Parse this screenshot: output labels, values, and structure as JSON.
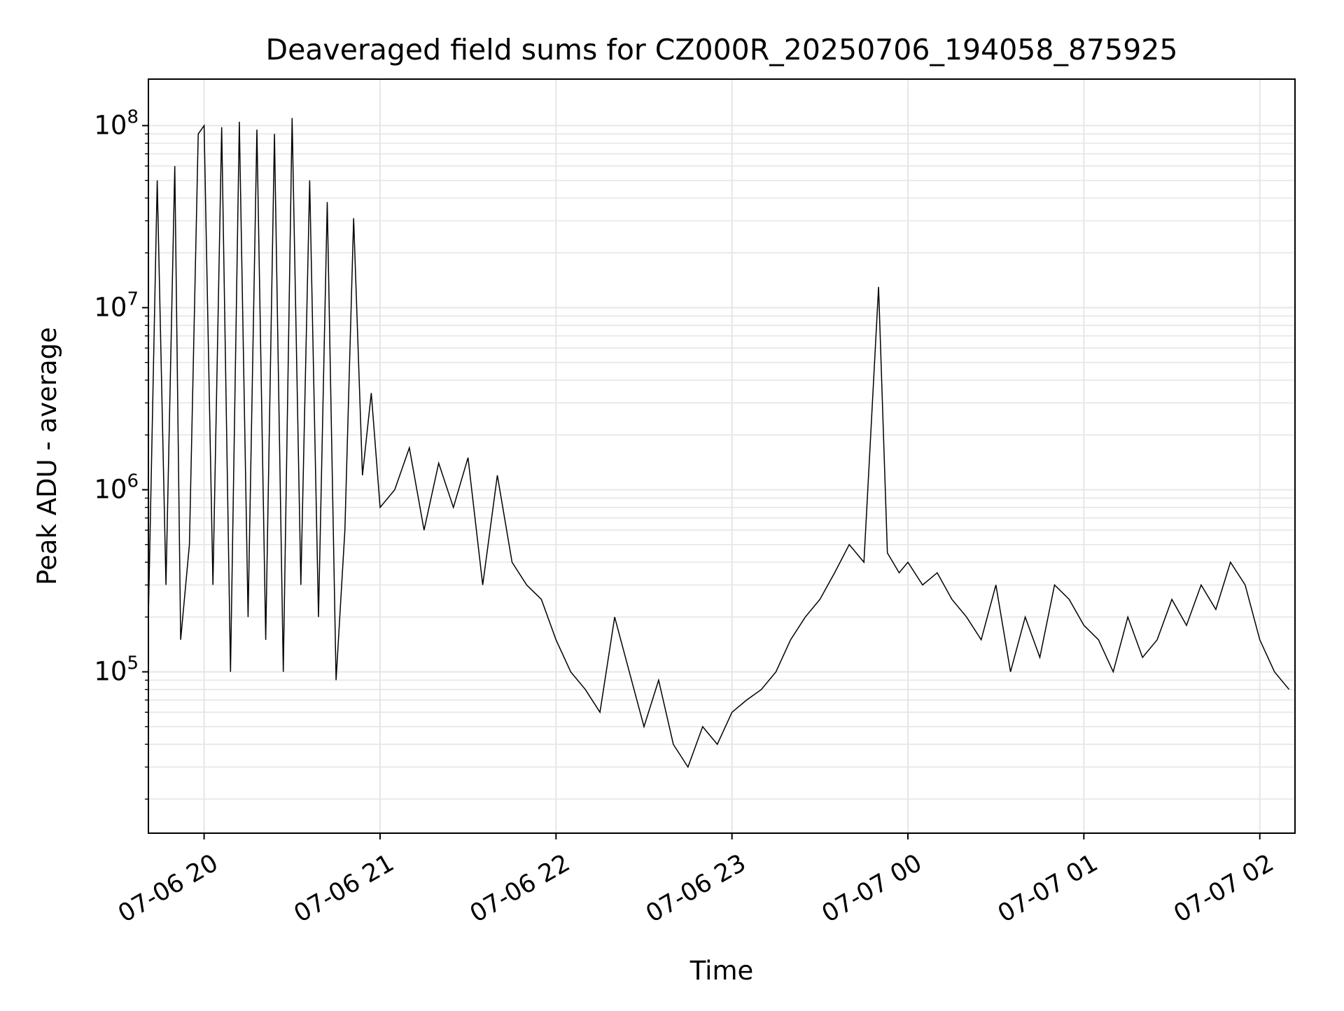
{
  "chart_data": {
    "type": "line",
    "title": "Deaveraged field sums for CZ000R_20250706_194058_875925",
    "xlabel": "Time",
    "ylabel": "Peak ADU - average",
    "xlim": [
      "2025-07-06 19:41",
      "2025-07-07 02:12"
    ],
    "ylim": [
      13000,
      180000000
    ],
    "yscale": "log",
    "grid": true,
    "grid_minor": true,
    "legend": "none",
    "line_color": "#000000",
    "x_ticks": [
      {
        "value": "2025-07-06 20:00",
        "label": "07-06 20"
      },
      {
        "value": "2025-07-06 21:00",
        "label": "07-06 21"
      },
      {
        "value": "2025-07-06 22:00",
        "label": "07-06 22"
      },
      {
        "value": "2025-07-06 23:00",
        "label": "07-06 23"
      },
      {
        "value": "2025-07-07 00:00",
        "label": "07-07 00"
      },
      {
        "value": "2025-07-07 01:00",
        "label": "07-07 01"
      },
      {
        "value": "2025-07-07 02:00",
        "label": "07-07 02"
      }
    ],
    "y_ticks": [
      {
        "value": 100000,
        "base": "10",
        "exp": "5"
      },
      {
        "value": 1000000,
        "base": "10",
        "exp": "6"
      },
      {
        "value": 10000000,
        "base": "10",
        "exp": "7"
      },
      {
        "value": 100000000,
        "base": "10",
        "exp": "8"
      }
    ],
    "series": [
      {
        "x": [
          "2025-07-06 19:41",
          "2025-07-06 19:44",
          "2025-07-06 19:47",
          "2025-07-06 19:50",
          "2025-07-06 19:52",
          "2025-07-06 19:55",
          "2025-07-06 19:58",
          "2025-07-06 20:00",
          "2025-07-06 20:03",
          "2025-07-06 20:06",
          "2025-07-06 20:09",
          "2025-07-06 20:12",
          "2025-07-06 20:15",
          "2025-07-06 20:18",
          "2025-07-06 20:21",
          "2025-07-06 20:24",
          "2025-07-06 20:27",
          "2025-07-06 20:30",
          "2025-07-06 20:33",
          "2025-07-06 20:36",
          "2025-07-06 20:39",
          "2025-07-06 20:42",
          "2025-07-06 20:45",
          "2025-07-06 20:48",
          "2025-07-06 20:51",
          "2025-07-06 20:54",
          "2025-07-06 20:57",
          "2025-07-06 21:00",
          "2025-07-06 21:05",
          "2025-07-06 21:10",
          "2025-07-06 21:15",
          "2025-07-06 21:20",
          "2025-07-06 21:25",
          "2025-07-06 21:30",
          "2025-07-06 21:35",
          "2025-07-06 21:40",
          "2025-07-06 21:45",
          "2025-07-06 21:50",
          "2025-07-06 21:55",
          "2025-07-06 22:00",
          "2025-07-06 22:05",
          "2025-07-06 22:10",
          "2025-07-06 22:15",
          "2025-07-06 22:20",
          "2025-07-06 22:25",
          "2025-07-06 22:30",
          "2025-07-06 22:35",
          "2025-07-06 22:40",
          "2025-07-06 22:45",
          "2025-07-06 22:50",
          "2025-07-06 22:55",
          "2025-07-06 23:00",
          "2025-07-06 23:05",
          "2025-07-06 23:10",
          "2025-07-06 23:15",
          "2025-07-06 23:20",
          "2025-07-06 23:25",
          "2025-07-06 23:30",
          "2025-07-06 23:35",
          "2025-07-06 23:40",
          "2025-07-06 23:45",
          "2025-07-06 23:50",
          "2025-07-06 23:53",
          "2025-07-06 23:57",
          "2025-07-07 00:00",
          "2025-07-07 00:05",
          "2025-07-07 00:10",
          "2025-07-07 00:15",
          "2025-07-07 00:20",
          "2025-07-07 00:25",
          "2025-07-07 00:30",
          "2025-07-07 00:35",
          "2025-07-07 00:40",
          "2025-07-07 00:45",
          "2025-07-07 00:50",
          "2025-07-07 00:55",
          "2025-07-07 01:00",
          "2025-07-07 01:05",
          "2025-07-07 01:10",
          "2025-07-07 01:15",
          "2025-07-07 01:20",
          "2025-07-07 01:25",
          "2025-07-07 01:30",
          "2025-07-07 01:35",
          "2025-07-07 01:40",
          "2025-07-07 01:45",
          "2025-07-07 01:50",
          "2025-07-07 01:55",
          "2025-07-07 02:00",
          "2025-07-07 02:05",
          "2025-07-07 02:10"
        ],
        "values": [
          200000,
          50000000,
          300000,
          60000000,
          150000,
          500000,
          90000000,
          100000000,
          300000,
          98000000,
          100000,
          105000000,
          200000,
          95000000,
          150000,
          90000000,
          100000,
          110000000,
          300000,
          50000000,
          200000,
          38000000,
          90000,
          600000,
          31000000,
          1200000,
          3400000,
          800000,
          1000000,
          1700000,
          600000,
          1400000,
          800000,
          1500000,
          300000,
          1200000,
          400000,
          300000,
          250000,
          150000,
          100000,
          80000,
          60000,
          200000,
          100000,
          50000,
          90000,
          40000,
          30000,
          50000,
          40000,
          60000,
          70000,
          80000,
          100000,
          150000,
          200000,
          250000,
          350000,
          500000,
          400000,
          13000000,
          450000,
          350000,
          400000,
          300000,
          350000,
          250000,
          200000,
          150000,
          300000,
          100000,
          200000,
          120000,
          300000,
          250000,
          180000,
          150000,
          100000,
          200000,
          120000,
          150000,
          250000,
          180000,
          300000,
          220000,
          400000,
          300000,
          150000,
          100000,
          80000
        ]
      }
    ]
  }
}
